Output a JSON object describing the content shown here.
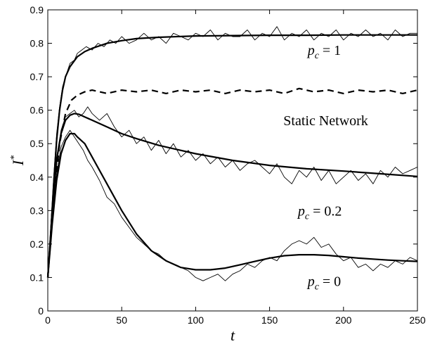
{
  "chart_data": {
    "type": "line",
    "title": "",
    "xlabel": "t",
    "ylabel": "I",
    "ylabel_superscript": "*",
    "xlim": [
      0,
      250
    ],
    "ylim": [
      0,
      0.9
    ],
    "xticks": [
      0,
      50,
      100,
      150,
      200,
      250
    ],
    "yticks": [
      0,
      0.1,
      0.2,
      0.3,
      0.4,
      0.5,
      0.6,
      0.7,
      0.8,
      0.9
    ],
    "grid": false,
    "legend": "none",
    "series": [
      {
        "key": "pc1_model",
        "style": "solid-thick",
        "x": [
          0,
          2,
          4,
          6,
          8,
          10,
          12,
          15,
          20,
          25,
          30,
          40,
          50,
          60,
          75,
          100,
          125,
          150,
          175,
          200,
          225,
          250
        ],
        "y": [
          0.1,
          0.23,
          0.38,
          0.51,
          0.6,
          0.66,
          0.7,
          0.73,
          0.76,
          0.775,
          0.785,
          0.8,
          0.808,
          0.814,
          0.818,
          0.822,
          0.823,
          0.824,
          0.824,
          0.825,
          0.825,
          0.825
        ]
      },
      {
        "key": "pc1_sim",
        "style": "solid-thin",
        "x": [
          0,
          2,
          4,
          6,
          8,
          10,
          12,
          15,
          18,
          20,
          23,
          26,
          30,
          34,
          38,
          42,
          46,
          50,
          55,
          60,
          65,
          70,
          75,
          80,
          85,
          90,
          95,
          100,
          105,
          110,
          115,
          120,
          125,
          130,
          135,
          140,
          145,
          150,
          155,
          160,
          165,
          170,
          175,
          180,
          185,
          190,
          195,
          200,
          205,
          210,
          215,
          220,
          225,
          230,
          235,
          240,
          245,
          250
        ],
        "y": [
          0.1,
          0.25,
          0.4,
          0.53,
          0.61,
          0.67,
          0.7,
          0.74,
          0.75,
          0.77,
          0.78,
          0.79,
          0.78,
          0.8,
          0.79,
          0.81,
          0.8,
          0.82,
          0.8,
          0.81,
          0.83,
          0.81,
          0.82,
          0.8,
          0.83,
          0.82,
          0.81,
          0.83,
          0.82,
          0.84,
          0.81,
          0.83,
          0.82,
          0.82,
          0.84,
          0.81,
          0.83,
          0.82,
          0.85,
          0.81,
          0.83,
          0.82,
          0.84,
          0.81,
          0.83,
          0.82,
          0.84,
          0.81,
          0.83,
          0.82,
          0.84,
          0.82,
          0.83,
          0.81,
          0.84,
          0.82,
          0.83,
          0.83
        ]
      },
      {
        "key": "static_network",
        "style": "dashed-thick",
        "x": [
          0,
          4,
          8,
          12,
          16,
          20,
          25,
          30,
          40,
          50,
          60,
          70,
          80,
          90,
          100,
          110,
          120,
          130,
          140,
          150,
          160,
          170,
          180,
          190,
          200,
          210,
          220,
          230,
          240,
          250
        ],
        "y": [
          0.1,
          0.33,
          0.5,
          0.59,
          0.63,
          0.645,
          0.655,
          0.66,
          0.65,
          0.66,
          0.655,
          0.66,
          0.65,
          0.66,
          0.655,
          0.66,
          0.65,
          0.66,
          0.655,
          0.66,
          0.65,
          0.665,
          0.655,
          0.66,
          0.65,
          0.66,
          0.655,
          0.66,
          0.65,
          0.66
        ]
      },
      {
        "key": "pc02_model",
        "style": "solid-thick",
        "x": [
          0,
          3,
          6,
          9,
          12,
          15,
          18,
          21,
          25,
          30,
          40,
          50,
          60,
          75,
          100,
          125,
          150,
          175,
          200,
          225,
          250
        ],
        "y": [
          0.1,
          0.3,
          0.45,
          0.53,
          0.57,
          0.585,
          0.59,
          0.588,
          0.58,
          0.57,
          0.55,
          0.53,
          0.515,
          0.495,
          0.47,
          0.45,
          0.435,
          0.425,
          0.418,
          0.41,
          0.402
        ]
      },
      {
        "key": "pc02_sim",
        "style": "solid-thin",
        "x": [
          0,
          3,
          6,
          9,
          12,
          15,
          18,
          21,
          24,
          27,
          30,
          35,
          40,
          45,
          50,
          55,
          60,
          65,
          70,
          75,
          80,
          85,
          90,
          95,
          100,
          105,
          110,
          115,
          120,
          125,
          130,
          135,
          140,
          145,
          150,
          155,
          160,
          165,
          170,
          175,
          180,
          185,
          190,
          195,
          200,
          205,
          210,
          215,
          220,
          225,
          230,
          235,
          240,
          245,
          250
        ],
        "y": [
          0.1,
          0.32,
          0.46,
          0.54,
          0.58,
          0.59,
          0.6,
          0.58,
          0.59,
          0.61,
          0.59,
          0.57,
          0.59,
          0.55,
          0.52,
          0.54,
          0.5,
          0.52,
          0.48,
          0.51,
          0.47,
          0.5,
          0.46,
          0.48,
          0.45,
          0.47,
          0.44,
          0.46,
          0.43,
          0.45,
          0.42,
          0.44,
          0.45,
          0.43,
          0.41,
          0.44,
          0.4,
          0.38,
          0.42,
          0.4,
          0.43,
          0.39,
          0.42,
          0.38,
          0.4,
          0.42,
          0.39,
          0.41,
          0.38,
          0.42,
          0.4,
          0.43,
          0.41,
          0.42,
          0.43
        ]
      },
      {
        "key": "pc0_model",
        "style": "solid-thick",
        "x": [
          0,
          3,
          6,
          9,
          12,
          15,
          18,
          20,
          25,
          30,
          40,
          50,
          60,
          70,
          80,
          90,
          100,
          110,
          120,
          130,
          140,
          150,
          160,
          170,
          180,
          190,
          200,
          210,
          220,
          230,
          240,
          250
        ],
        "y": [
          0.1,
          0.26,
          0.39,
          0.47,
          0.51,
          0.53,
          0.53,
          0.52,
          0.5,
          0.46,
          0.38,
          0.3,
          0.23,
          0.18,
          0.15,
          0.13,
          0.123,
          0.123,
          0.128,
          0.138,
          0.148,
          0.158,
          0.165,
          0.168,
          0.168,
          0.166,
          0.162,
          0.158,
          0.155,
          0.152,
          0.15,
          0.148
        ]
      },
      {
        "key": "pc0_sim",
        "style": "solid-thin",
        "x": [
          0,
          3,
          6,
          9,
          12,
          15,
          18,
          21,
          24,
          27,
          30,
          35,
          40,
          45,
          50,
          55,
          60,
          65,
          70,
          75,
          80,
          85,
          90,
          95,
          100,
          105,
          110,
          115,
          120,
          125,
          130,
          135,
          140,
          145,
          150,
          155,
          160,
          165,
          170,
          175,
          180,
          185,
          190,
          195,
          200,
          205,
          210,
          215,
          220,
          225,
          230,
          235,
          240,
          245,
          250
        ],
        "y": [
          0.1,
          0.28,
          0.41,
          0.49,
          0.52,
          0.54,
          0.52,
          0.5,
          0.48,
          0.45,
          0.43,
          0.39,
          0.34,
          0.32,
          0.28,
          0.25,
          0.22,
          0.2,
          0.18,
          0.17,
          0.15,
          0.14,
          0.13,
          0.12,
          0.1,
          0.09,
          0.1,
          0.11,
          0.09,
          0.11,
          0.12,
          0.14,
          0.13,
          0.15,
          0.16,
          0.15,
          0.18,
          0.2,
          0.21,
          0.2,
          0.22,
          0.19,
          0.2,
          0.17,
          0.15,
          0.16,
          0.13,
          0.14,
          0.12,
          0.14,
          0.13,
          0.15,
          0.14,
          0.16,
          0.15
        ]
      }
    ],
    "annotations": [
      {
        "key": "pc1",
        "prefix": "p",
        "subscript": "c",
        "rest": " = 1",
        "x": 187,
        "y": 0.765
      },
      {
        "key": "static",
        "text": "Static Network",
        "x": 188,
        "y": 0.555
      },
      {
        "key": "pc02",
        "prefix": "p",
        "subscript": "c",
        "rest": " = 0.2",
        "x": 184,
        "y": 0.285
      },
      {
        "key": "pc0",
        "prefix": "p",
        "subscript": "c",
        "rest": " = 0",
        "x": 187,
        "y": 0.075
      }
    ]
  }
}
